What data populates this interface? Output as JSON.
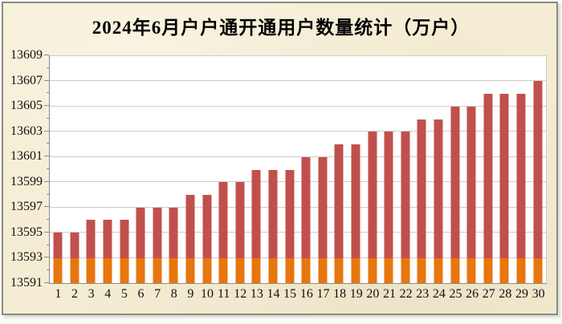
{
  "chart": {
    "title": "2024年6月户户通开通用户数量统计（万户）"
  },
  "chart_data": {
    "type": "bar",
    "title": "2024年6月户户通开通用户数量统计（万户）",
    "categories": [
      "1",
      "2",
      "3",
      "4",
      "5",
      "6",
      "7",
      "8",
      "9",
      "10",
      "11",
      "12",
      "13",
      "14",
      "15",
      "16",
      "17",
      "18",
      "19",
      "20",
      "21",
      "22",
      "23",
      "24",
      "25",
      "26",
      "27",
      "28",
      "29",
      "30"
    ],
    "values": [
      13595,
      13595,
      13596,
      13596,
      13596,
      13597,
      13597,
      13597,
      13598,
      13598,
      13599,
      13599,
      13600,
      13600,
      13600,
      13601,
      13601,
      13602,
      13602,
      13603,
      13603,
      13603,
      13604,
      13604,
      13605,
      13605,
      13606,
      13606,
      13606,
      13607
    ],
    "xlabel": "",
    "ylabel": "",
    "ylim": [
      13591,
      13609
    ],
    "y_major_step": 2,
    "y_minor_step": 1,
    "y_tick_labels": [
      "13591",
      "13593",
      "13595",
      "13597",
      "13599",
      "13601",
      "13603",
      "13605",
      "13607",
      "13609"
    ],
    "grid": true,
    "legend_position": "none",
    "base_segment_boundary": 13593,
    "colors": {
      "bar_top": "#C0504D",
      "bar_base": "#E8760D",
      "plot_background": "#FFFFFF",
      "frame_background": "#F5EDD3",
      "gridline": "#CDCDCD",
      "axis": "#8A8A8A",
      "text": "#000000"
    }
  }
}
